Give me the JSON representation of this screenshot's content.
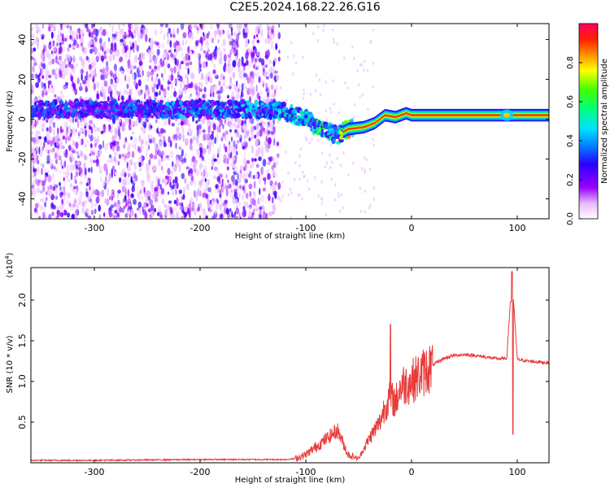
{
  "title": "C2E5.2024.168.22.26.G16",
  "colors": {
    "line": "#e83a3a",
    "ridge_low": "#5000ff",
    "ridge_mid": "#00e0ff",
    "ridge_high": "#e01a40"
  },
  "chart_data": [
    {
      "type": "heatmap",
      "xlabel": "Height of straight line (km)",
      "ylabel": "Frequency (Hz)",
      "xlim": [
        -360,
        130
      ],
      "ylim": [
        -50,
        48
      ],
      "xticks": [
        -300,
        -200,
        -100,
        0,
        100
      ],
      "yticks": [
        -40,
        -20,
        0,
        20,
        40
      ],
      "colorbar": {
        "label": "Normalized spectral amplitude",
        "range": [
          0,
          1
        ],
        "ticks": [
          "0.0",
          "0.2",
          "0.4",
          "0.6",
          "0.8"
        ],
        "tick_values": [
          0.0,
          0.2,
          0.4,
          0.6,
          0.8
        ]
      },
      "ridge": {
        "x": [
          -340,
          -300,
          -250,
          -200,
          -150,
          -120,
          -100,
          -85,
          -70,
          -60,
          -45,
          -35,
          -25,
          -15,
          -5,
          0,
          20,
          60,
          90,
          130
        ],
        "freq": [
          5,
          5,
          5,
          5,
          5,
          4,
          0,
          -5,
          -8,
          -5,
          -4,
          -2,
          2,
          1,
          3,
          2,
          2,
          2,
          2,
          2
        ],
        "amplitude": [
          0.35,
          0.35,
          0.4,
          0.42,
          0.45,
          0.5,
          0.55,
          0.6,
          0.55,
          0.9,
          0.95,
          0.9,
          0.9,
          0.95,
          0.95,
          0.95,
          0.97,
          0.97,
          0.97,
          0.97
        ]
      }
    },
    {
      "type": "line",
      "xlabel": "Height of straight line (km)",
      "ylabel": "SNR (10 * v/v)",
      "y_multiplier": "(x10",
      "y_multiplier_exp": "4",
      "y_multiplier_close": ")",
      "xlim": [
        -360,
        130
      ],
      "ylim": [
        0,
        2.4
      ],
      "xticks": [
        -300,
        -200,
        -100,
        0,
        100
      ],
      "yticks": [
        0.5,
        1.0,
        1.5,
        2.0
      ],
      "series": [
        {
          "x": [
            -360,
            -300,
            -200,
            -150,
            -120,
            -110,
            -100,
            -90,
            -80,
            -70,
            -60,
            -50,
            -40,
            -30,
            -25,
            -20,
            -15,
            -10,
            0,
            10,
            20,
            30,
            40,
            50,
            60,
            70,
            80,
            90,
            95,
            100,
            110,
            120,
            130
          ],
          "y": [
            0.03,
            0.03,
            0.04,
            0.04,
            0.04,
            0.05,
            0.1,
            0.2,
            0.3,
            0.4,
            0.1,
            0.05,
            0.3,
            0.5,
            0.7,
            0.8,
            0.75,
            0.95,
            1.0,
            1.1,
            1.2,
            1.28,
            1.32,
            1.33,
            1.32,
            1.3,
            1.28,
            1.28,
            2.3,
            1.27,
            1.25,
            1.24,
            1.23
          ]
        }
      ]
    }
  ]
}
